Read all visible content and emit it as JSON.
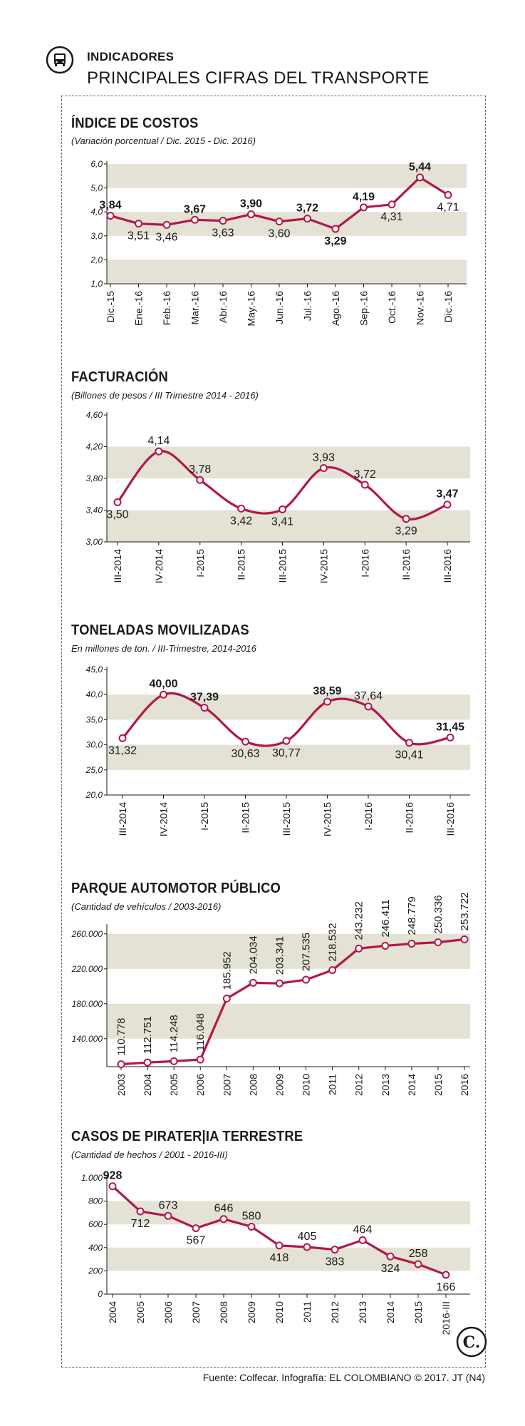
{
  "header": {
    "kicker": "INDICADORES",
    "headline": "PRINCIPALES CIFRAS DEL TRANSPORTE",
    "icon": "bus-icon"
  },
  "footer": {
    "source": "Fuente: Colfecar. Infografía: EL COLOMBIANO © 2017. JT (N4)",
    "brand_letter": "C."
  },
  "colors": {
    "line": "#b3174a",
    "band": "#e4e2d4",
    "text": "#1a1a1a"
  },
  "chart_data": [
    {
      "type": "line",
      "title": "ÍNDICE DE COSTOS",
      "subtitle": "(Variación porcentual / Dic. 2015 - Dic. 2016)",
      "categories": [
        "Dic.-15",
        "Ene.-16",
        "Feb.-16",
        "Mar.-16",
        "Abr.-16",
        "May.-16",
        "Jun.-16",
        "Jul.-16",
        "Ago.-16",
        "Sep.-16",
        "Oct.-16",
        "Nov.-16",
        "Dic.-16"
      ],
      "values": [
        3.84,
        3.51,
        3.46,
        3.67,
        3.63,
        3.9,
        3.6,
        3.72,
        3.29,
        4.19,
        4.31,
        5.44,
        4.71
      ],
      "value_labels": [
        "3,84",
        "3,51",
        "3,46",
        "3,67",
        "3,63",
        "3,90",
        "3,60",
        "3,72",
        "3,29",
        "4,19",
        "4,31",
        "5,44",
        "4,71"
      ],
      "bold_labels": [
        0,
        3,
        5,
        7,
        8,
        9,
        11
      ],
      "ylim": [
        1.0,
        6.0
      ],
      "yticks": [
        1.0,
        2.0,
        3.0,
        4.0,
        5.0,
        6.0
      ],
      "ytick_labels": [
        "1,0",
        "2,0",
        "3,0",
        "4,0",
        "5,0",
        "6,0"
      ],
      "bands": [
        [
          2.0,
          1.0
        ],
        [
          4.0,
          3.0
        ],
        [
          6.0,
          5.0
        ]
      ],
      "smooth": false,
      "rotate_x": true
    },
    {
      "type": "line",
      "title": "FACTURACIÓN",
      "subtitle": "(Billones de pesos / III Trimestre 2014 - 2016)",
      "categories": [
        "III-2014",
        "IV-2014",
        "I-2015",
        "II-2015",
        "III-2015",
        "IV-2015",
        "I-2016",
        "II-2016",
        "III-2016"
      ],
      "values": [
        3.5,
        4.14,
        3.78,
        3.42,
        3.41,
        3.93,
        3.72,
        3.29,
        3.47
      ],
      "value_labels": [
        "3,50",
        "4,14",
        "3,78",
        "3,42",
        "3,41",
        "3,93",
        "3,72",
        "3,29",
        "3,47"
      ],
      "bold_labels": [
        8
      ],
      "ylim": [
        3.0,
        4.6
      ],
      "yticks": [
        3.0,
        3.4,
        3.8,
        4.2,
        4.6
      ],
      "ytick_labels": [
        "3,00",
        "3,40",
        "3,80",
        "4,20",
        "4,60"
      ],
      "bands": [
        [
          3.4,
          3.0
        ],
        [
          4.2,
          3.8
        ]
      ],
      "smooth": true,
      "rotate_x": true
    },
    {
      "type": "line",
      "title": "TONELADAS MOVILIZADAS",
      "subtitle": "En millones de ton. / III-Trimestre, 2014-2016",
      "categories": [
        "III-2014",
        "IV-2014",
        "I-2015",
        "II-2015",
        "III-2015",
        "IV-2015",
        "I-2016",
        "II-2016",
        "III-2016"
      ],
      "values": [
        31.32,
        40.0,
        37.39,
        30.63,
        30.77,
        38.59,
        37.64,
        30.41,
        31.45
      ],
      "value_labels": [
        "31,32",
        "40,00",
        "37,39",
        "30,63",
        "30,77",
        "38,59",
        "37,64",
        "30,41",
        "31,45"
      ],
      "bold_labels": [
        1,
        2,
        5,
        8
      ],
      "ylim": [
        20.0,
        45.0
      ],
      "yticks": [
        20,
        25,
        30,
        35,
        40,
        45
      ],
      "ytick_labels": [
        "20,0",
        "25,0",
        "30,0",
        "35,0",
        "40,0",
        "45,0"
      ],
      "bands": [
        [
          30,
          25
        ],
        [
          40,
          35
        ]
      ],
      "smooth": true,
      "rotate_x": true
    },
    {
      "type": "line",
      "title": "PARQUE AUTOMOTOR PÚBLICO",
      "subtitle": "(Cantidad de vehículos / 2003-2016)",
      "categories": [
        "2003",
        "2004",
        "2005",
        "2006",
        "2007",
        "2008",
        "2009",
        "2010",
        "2011",
        "2012",
        "2013",
        "2014",
        "2015",
        "2016"
      ],
      "values": [
        110778,
        112751,
        114248,
        116048,
        185952,
        204034,
        203341,
        207535,
        218532,
        243232,
        246411,
        248779,
        250336,
        253722
      ],
      "value_labels": [
        "110.778",
        "112.751",
        "114.248",
        "116.048",
        "185.952",
        "204.034",
        "203.341",
        "207.535",
        "218.532",
        "243.232",
        "246.411",
        "248.779",
        "250.336",
        "253.722"
      ],
      "ylim": [
        108000,
        268000
      ],
      "yticks": [
        140000,
        180000,
        220000,
        260000
      ],
      "ytick_labels": [
        "140.000",
        "180.000",
        "220.000",
        "260.000"
      ],
      "bands": [
        [
          180000,
          140000
        ],
        [
          260000,
          220000
        ]
      ],
      "smooth": false,
      "rotate_x": true,
      "rotate_labels": true
    },
    {
      "type": "line",
      "title": "CASOS DE PIRATER|IA TERRESTRE",
      "subtitle": "(Cantidad de hechos / 2001 - 2016-III)",
      "categories": [
        "2004",
        "2005",
        "2006",
        "2007",
        "2008",
        "2009",
        "2010",
        "2011",
        "2012",
        "2013",
        "2014",
        "2015",
        "2016-III"
      ],
      "values": [
        928,
        712,
        673,
        567,
        646,
        580,
        418,
        405,
        383,
        464,
        324,
        258,
        166
      ],
      "value_labels": [
        "928",
        "712",
        "673",
        "567",
        "646",
        "580",
        "418",
        "405",
        "383",
        "464",
        "324",
        "258",
        "166"
      ],
      "bold_labels": [
        0
      ],
      "ylim": [
        0,
        1000
      ],
      "yticks": [
        0,
        200,
        400,
        600,
        800,
        1000
      ],
      "ytick_labels": [
        "0",
        "200",
        "400",
        "600",
        "800",
        "1.000"
      ],
      "bands": [
        [
          400,
          200
        ],
        [
          800,
          600
        ]
      ],
      "smooth": false,
      "rotate_x": true
    }
  ]
}
